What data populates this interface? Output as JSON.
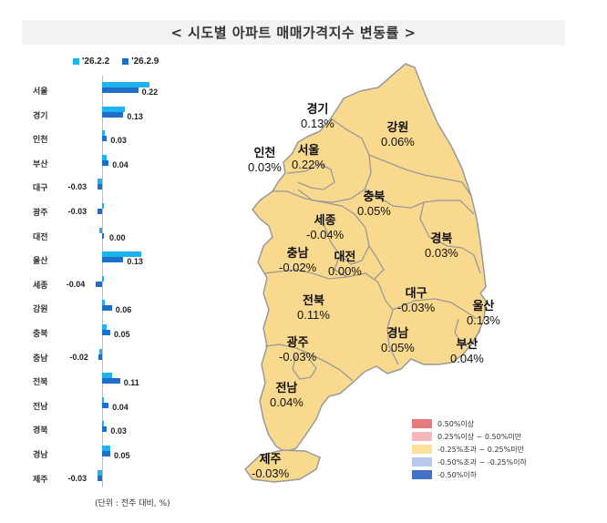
{
  "title": "< 시도별 아파트 매매가격지수 변동률 >",
  "legend_top": [
    {
      "label": "'26.2.2",
      "color": "#1EB3F0"
    },
    {
      "label": "'26.2.9",
      "color": "#1E6FC8"
    }
  ],
  "unit_note": "(단위 : 전주 대비, %)",
  "chart_data": [
    {
      "type": "bar",
      "orientation": "horizontal",
      "title": "",
      "categories": [
        "서울",
        "경기",
        "인천",
        "부산",
        "대구",
        "광주",
        "대전",
        "울산",
        "세종",
        "강원",
        "충북",
        "충남",
        "전북",
        "전남",
        "경북",
        "경남",
        "제주"
      ],
      "series": [
        {
          "name": "'26.2.2",
          "values": [
            0.29,
            0.14,
            0.01,
            0.03,
            -0.03,
            0.0,
            -0.01,
            0.24,
            0.0,
            0.01,
            0.03,
            -0.01,
            0.06,
            0.0,
            0.0,
            0.05,
            -0.03
          ]
        },
        {
          "name": "'26.2.9",
          "values": [
            0.22,
            0.13,
            0.03,
            0.04,
            -0.03,
            -0.03,
            0.0,
            0.13,
            -0.04,
            0.06,
            0.05,
            -0.02,
            0.11,
            0.04,
            0.03,
            0.05,
            -0.03
          ]
        }
      ],
      "data_labels": [
        "0.22",
        "0.13",
        "0.03",
        "0.04",
        "-0.03",
        "-0.03",
        "0.00",
        "0.13",
        "-0.04",
        "0.06",
        "0.05",
        "-0.02",
        "0.11",
        "0.04",
        "0.03",
        "0.05",
        "-0.03"
      ],
      "xlabel": "",
      "ylabel": "",
      "unit": "(단위 : 전주 대비, %)",
      "legend_position": "top"
    },
    {
      "type": "choropleth",
      "title": "",
      "regions": [
        {
          "name": "경기",
          "value": "0.13%"
        },
        {
          "name": "강원",
          "value": "0.06%"
        },
        {
          "name": "인천",
          "value": "0.03%"
        },
        {
          "name": "서울",
          "value": "0.22%"
        },
        {
          "name": "충북",
          "value": "0.05%"
        },
        {
          "name": "세종",
          "value": "-0.04%"
        },
        {
          "name": "경북",
          "value": "0.03%"
        },
        {
          "name": "충남",
          "value": "-0.02%"
        },
        {
          "name": "대전",
          "value": "0.00%"
        },
        {
          "name": "전북",
          "value": "0.11%"
        },
        {
          "name": "대구",
          "value": "-0.03%"
        },
        {
          "name": "울산",
          "value": "0.13%"
        },
        {
          "name": "광주",
          "value": "-0.03%"
        },
        {
          "name": "경남",
          "value": "0.05%"
        },
        {
          "name": "부산",
          "value": "0.04%"
        },
        {
          "name": "전남",
          "value": "0.04%"
        },
        {
          "name": "제주",
          "value": "-0.03%"
        }
      ],
      "legend": [
        {
          "label": "0.50%이상",
          "color": "#E87A7E"
        },
        {
          "label": "0.25%이상 ~ 0.50%미만",
          "color": "#F4B8BC"
        },
        {
          "label": "-0.25%초과 ~ 0.25%미만",
          "color": "#FCE09C"
        },
        {
          "label": "-0.50%초과 ~ -0.25%이하",
          "color": "#B8C8EA"
        },
        {
          "label": "-0.50%이하",
          "color": "#4472C4"
        }
      ]
    }
  ],
  "colors": {
    "map_fill": "#F9D98E",
    "map_border": "#999999",
    "bar_prev": "#1EB3F0",
    "bar_curr": "#1E6FC8",
    "title_bg": "#F2F2F2"
  }
}
